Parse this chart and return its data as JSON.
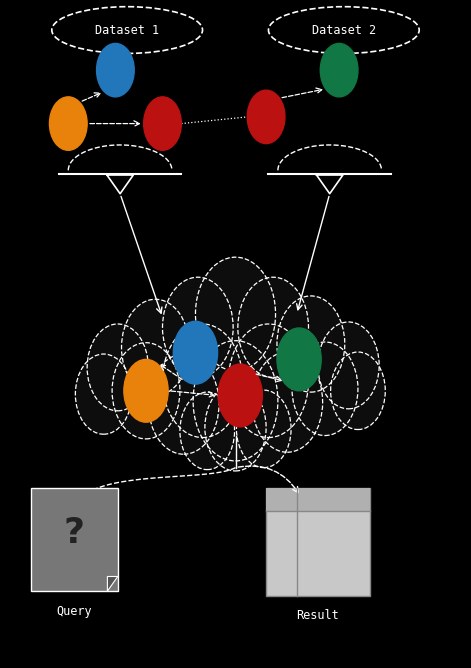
{
  "bg_color": "#000000",
  "dataset1_label": "Dataset 1",
  "dataset2_label": "Dataset 2",
  "query_label": "Query",
  "result_label": "Result",
  "node_blue": "#2277bb",
  "node_orange": "#e8820a",
  "node_red": "#bb1111",
  "node_green": "#117744",
  "figsize": [
    4.71,
    6.68
  ],
  "dpi": 100,
  "cloud_fill": "#0d0d0d",
  "query_fill": "#777777",
  "result_fill": "#c8c8c8",
  "result_fill2": "#b0b0b0"
}
